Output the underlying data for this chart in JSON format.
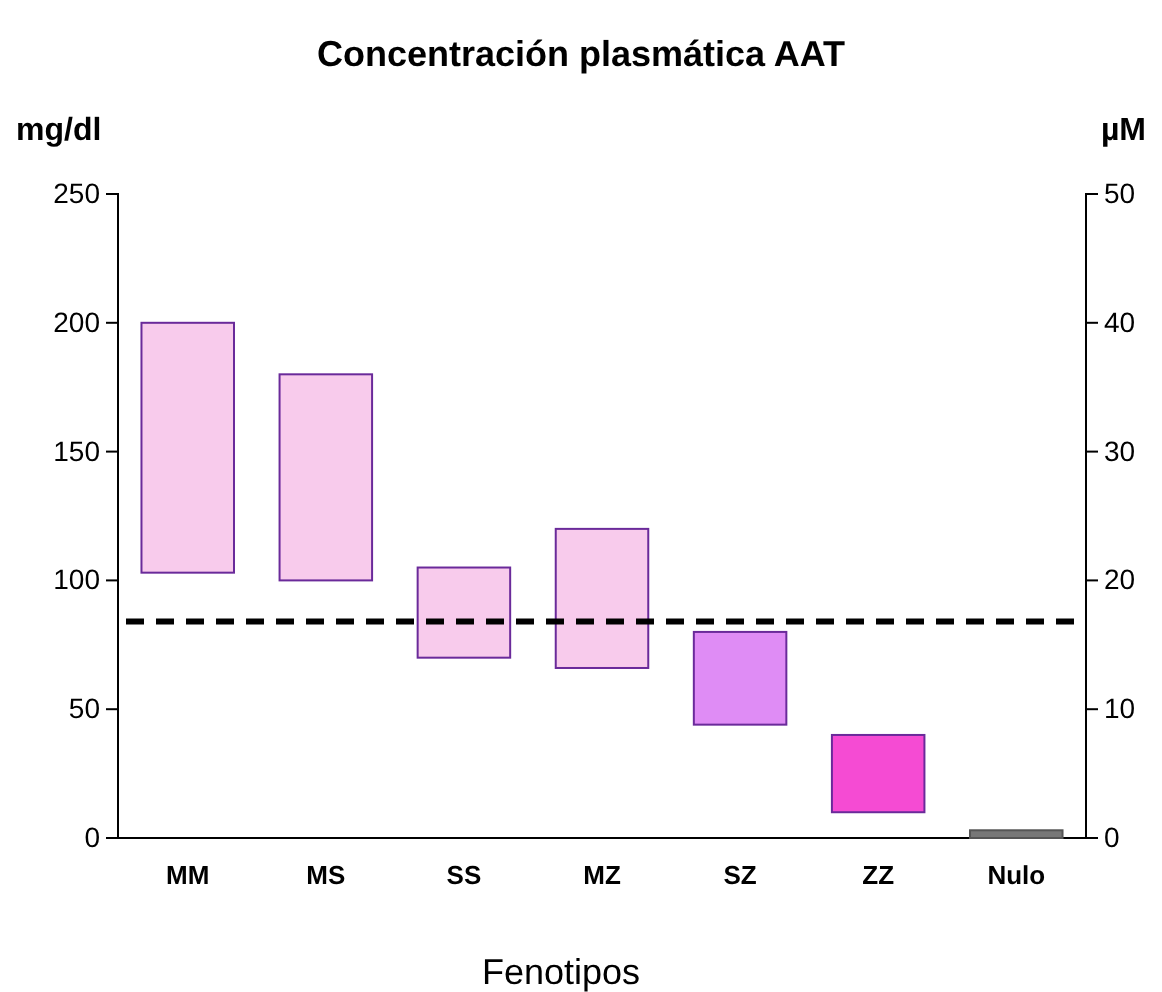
{
  "chart_data": {
    "type": "bar",
    "title": "Concentración plasmática AAT",
    "xlabel": "Fenotipos",
    "ylabel": "mg/dl",
    "y2label": "µM",
    "categories": [
      "MM",
      "MS",
      "SS",
      "MZ",
      "SZ",
      "ZZ",
      "Nulo"
    ],
    "base": [
      103,
      100,
      70,
      66,
      44,
      10,
      0
    ],
    "values": [
      97,
      80,
      35,
      54,
      36,
      30,
      3
    ],
    "colors": [
      "#f8cbec",
      "#f8cbec",
      "#f8cbec",
      "#f8cbec",
      "#df8cf5",
      "#f54bd3",
      "#777777"
    ],
    "ylim": [
      0,
      250
    ],
    "yticks": [
      0,
      50,
      100,
      150,
      200,
      250
    ],
    "y2lim": [
      0,
      50
    ],
    "y2ticks": [
      0,
      10,
      20,
      30,
      40,
      50
    ],
    "ref_lines": [
      {
        "axis": "y",
        "value": 84,
        "color": "#000000",
        "line_style": "dashed"
      }
    ],
    "grid": false
  }
}
